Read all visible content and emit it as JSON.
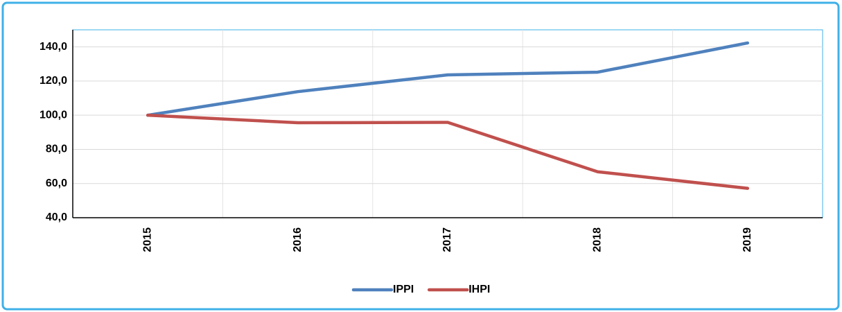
{
  "chart_data": {
    "type": "line",
    "categories": [
      "2015",
      "2016",
      "2017",
      "2018",
      "2019"
    ],
    "series": [
      {
        "name": "IPPI",
        "color": "#4f81bd",
        "values": [
          100,
          113.8,
          123.6,
          125.2,
          142.3
        ]
      },
      {
        "name": "IHPI",
        "color": "#c0504d",
        "values": [
          100,
          95.6,
          95.8,
          66.9,
          57.2
        ]
      }
    ],
    "ylim": [
      40,
      150
    ],
    "yticks": [
      {
        "value": 40,
        "label": "40,0"
      },
      {
        "value": 60,
        "label": "60,0"
      },
      {
        "value": 80,
        "label": "80,0"
      },
      {
        "value": 100,
        "label": "100,0"
      },
      {
        "value": 120,
        "label": "120,0"
      },
      {
        "value": 140,
        "label": "140,0"
      }
    ],
    "grid": true,
    "legend": "bottom"
  }
}
